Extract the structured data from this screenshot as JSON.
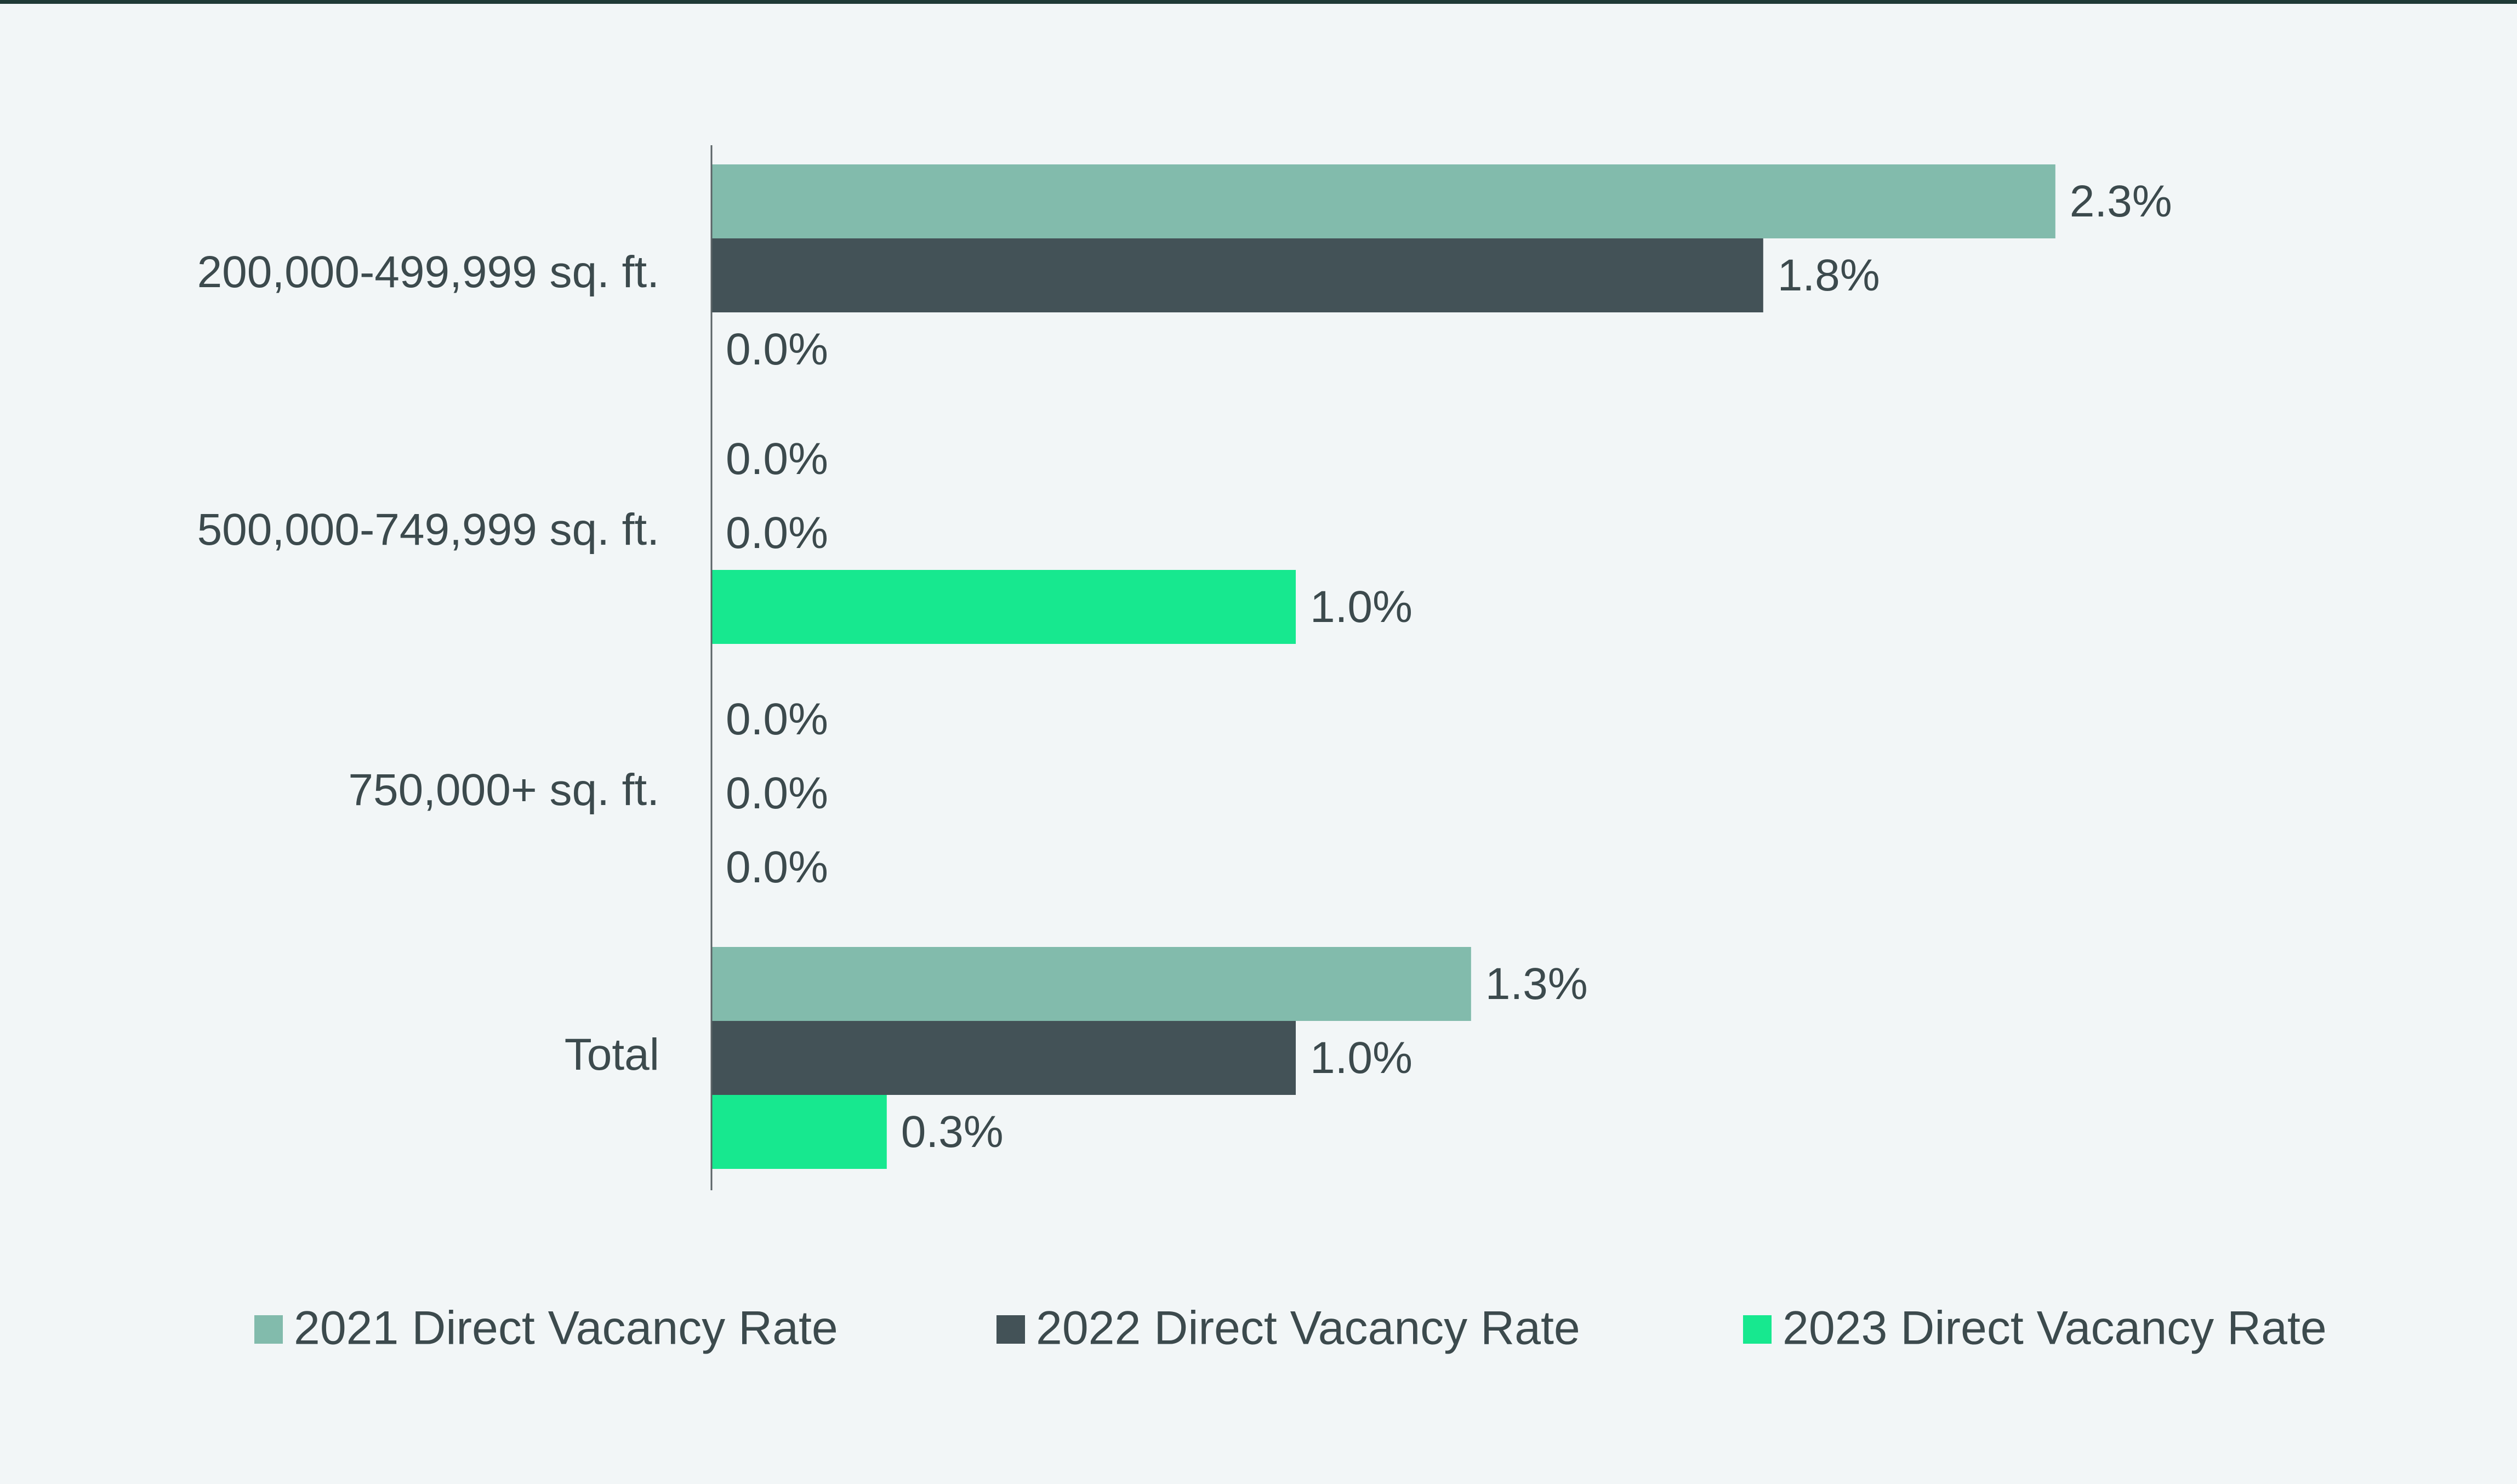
{
  "colors": {
    "background": "#f2f6f7",
    "top_rule": "#1f3a36",
    "text": "#3c4a4d",
    "axis": "#5a6366"
  },
  "chart_data": {
    "type": "bar",
    "orientation": "horizontal",
    "grouped": true,
    "value_format": "percent_1dp",
    "xlim": [
      0,
      2.3
    ],
    "grid": false,
    "legend_position": "bottom",
    "categories": [
      "200,000-499,999 sq. ft.",
      "500,000-749,999 sq. ft.",
      "750,000+ sq. ft.",
      "Total"
    ],
    "series": [
      {
        "name": "2021 Direct Vacancy Rate",
        "color": "#82bbac",
        "values": [
          2.3,
          0.0,
          0.0,
          1.3
        ],
        "labels": [
          "2.3%",
          "0.0%",
          "0.0%",
          "1.3%"
        ]
      },
      {
        "name": "2022 Direct Vacancy Rate",
        "color": "#435257",
        "values": [
          1.8,
          0.0,
          0.0,
          1.0
        ],
        "labels": [
          "1.8%",
          "0.0%",
          "0.0%",
          "1.0%"
        ]
      },
      {
        "name": "2023 Direct Vacancy Rate",
        "color": "#17e88f",
        "values": [
          0.0,
          1.0,
          0.0,
          0.3
        ],
        "labels": [
          "0.0%",
          "1.0%",
          "0.0%",
          "0.3%"
        ]
      }
    ]
  }
}
